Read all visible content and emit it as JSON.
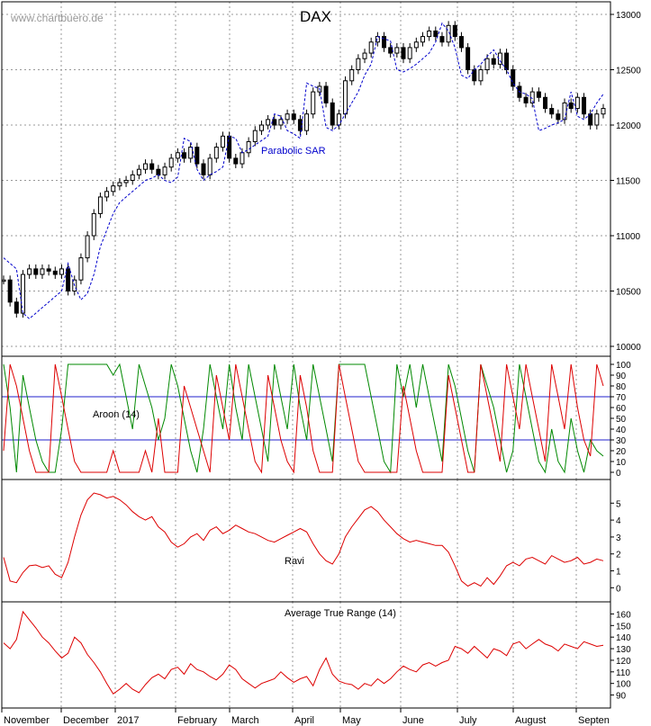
{
  "watermark": "www.chartbuero.de",
  "chart_data": {
    "type": "line",
    "title": "DAX",
    "months": [
      "November",
      "December",
      "2017",
      "February",
      "March",
      "April",
      "May",
      "June",
      "July",
      "August",
      "Septen"
    ],
    "panels": [
      {
        "name": "price",
        "type": "candlestick",
        "ylim": [
          10000,
          13000
        ],
        "yticks": [
          10000,
          10500,
          11000,
          11500,
          12000,
          12500,
          13000
        ],
        "grid": true,
        "annotation": "Parabolic SAR",
        "close": [
          10600,
          10400,
          10300,
          10650,
          10700,
          10650,
          10700,
          10680,
          10650,
          10700,
          10500,
          10600,
          10800,
          11000,
          11200,
          11350,
          11400,
          11450,
          11480,
          11500,
          11550,
          11600,
          11650,
          11600,
          11550,
          11620,
          11700,
          11750,
          11700,
          11800,
          11650,
          11550,
          11700,
          11800,
          11900,
          11700,
          11650,
          11750,
          11850,
          11950,
          12000,
          12050,
          12000,
          12050,
          12100,
          12050,
          11950,
          12100,
          12300,
          12350,
          12200,
          12000,
          12100,
          12400,
          12500,
          12600,
          12650,
          12750,
          12800,
          12700,
          12650,
          12700,
          12600,
          12700,
          12750,
          12800,
          12850,
          12800,
          12750,
          12900,
          12800,
          12700,
          12500,
          12400,
          12500,
          12600,
          12550,
          12650,
          12500,
          12350,
          12250,
          12200,
          12300,
          12250,
          12150,
          12100,
          12050,
          12200,
          12150,
          12250,
          12100,
          12000,
          12100,
          12150
        ],
        "sar": [
          10800,
          10750,
          10700,
          10300,
          10250,
          10300,
          10350,
          10400,
          10450,
          10500,
          10750,
          10550,
          10420,
          10480,
          10650,
          10900,
          11050,
          11200,
          11300,
          11350,
          11400,
          11450,
          11500,
          11520,
          11550,
          11500,
          11480,
          11530,
          11880,
          11850,
          11600,
          11500,
          11550,
          11580,
          11620,
          11900,
          11880,
          11750,
          11780,
          11820,
          11860,
          11900,
          12100,
          12080,
          11950,
          11920,
          11880,
          12380,
          12350,
          12330,
          11980,
          11950,
          12000,
          12100,
          12200,
          12300,
          12450,
          12550,
          12800,
          12780,
          12760,
          12500,
          12480,
          12510,
          12550,
          12600,
          12650,
          12750,
          12920,
          12850,
          12700,
          12450,
          12420,
          12500,
          12550,
          12620,
          12680,
          12580,
          12500,
          12380,
          12300,
          12280,
          12240,
          11950,
          11970,
          12000,
          12020,
          12050,
          12300,
          12080,
          12050,
          12100,
          12200,
          12280
        ],
        "series_colors": {
          "price": "#000000",
          "sar": "#0000cc"
        }
      },
      {
        "name": "aroon",
        "label": "Aroon (14)",
        "ylim": [
          0,
          100
        ],
        "yticks": [
          0,
          10,
          20,
          30,
          40,
          50,
          60,
          70,
          80,
          90,
          100
        ],
        "hlines": [
          30,
          70
        ],
        "up": [
          100,
          60,
          0,
          90,
          60,
          30,
          10,
          0,
          0,
          40,
          100,
          100,
          100,
          100,
          100,
          100,
          100,
          90,
          100,
          70,
          40,
          100,
          80,
          60,
          30,
          50,
          100,
          80,
          50,
          20,
          0,
          40,
          100,
          70,
          40,
          100,
          60,
          30,
          100,
          70,
          40,
          10,
          100,
          70,
          40,
          100,
          60,
          30,
          100,
          70,
          40,
          10,
          100,
          100,
          100,
          100,
          100,
          70,
          40,
          10,
          0,
          100,
          70,
          100,
          60,
          100,
          70,
          40,
          10,
          100,
          80,
          50,
          20,
          0,
          100,
          80,
          60,
          30,
          0,
          20,
          100,
          70,
          40,
          10,
          0,
          40,
          10,
          0,
          50,
          20,
          0,
          30,
          20,
          15
        ],
        "down": [
          20,
          100,
          80,
          50,
          20,
          0,
          0,
          0,
          100,
          70,
          40,
          10,
          0,
          0,
          0,
          0,
          0,
          20,
          0,
          0,
          0,
          0,
          20,
          0,
          50,
          0,
          0,
          0,
          80,
          60,
          40,
          20,
          0,
          90,
          60,
          30,
          100,
          70,
          40,
          10,
          0,
          90,
          60,
          30,
          10,
          0,
          90,
          60,
          20,
          0,
          0,
          0,
          100,
          70,
          40,
          10,
          0,
          0,
          0,
          0,
          0,
          0,
          80,
          50,
          20,
          0,
          0,
          0,
          0,
          90,
          60,
          30,
          0,
          0,
          100,
          70,
          40,
          10,
          100,
          70,
          40,
          100,
          70,
          40,
          10,
          100,
          70,
          40,
          100,
          60,
          30,
          15,
          100,
          80
        ],
        "series_colors": {
          "up": "#008800",
          "down": "#dd0000"
        }
      },
      {
        "name": "ravi",
        "label": "Ravi",
        "ylim": [
          -0.3,
          5.6
        ],
        "yticks": [
          0,
          1,
          2,
          3,
          4,
          5
        ],
        "values": [
          1.8,
          0.4,
          0.3,
          0.9,
          1.3,
          1.35,
          1.2,
          1.3,
          0.8,
          0.6,
          1.5,
          3.0,
          4.3,
          5.2,
          5.6,
          5.5,
          5.3,
          5.4,
          5.2,
          4.9,
          4.5,
          4.2,
          4.0,
          4.2,
          3.6,
          3.3,
          2.7,
          2.4,
          2.6,
          3.0,
          3.2,
          2.8,
          3.4,
          3.6,
          3.2,
          3.4,
          3.7,
          3.5,
          3.3,
          3.2,
          3.0,
          2.8,
          2.7,
          2.9,
          3.1,
          3.3,
          3.5,
          3.3,
          2.6,
          2.0,
          1.6,
          1.4,
          2.0,
          3.0,
          3.6,
          4.1,
          4.6,
          4.8,
          4.5,
          4.0,
          3.6,
          3.2,
          2.9,
          2.7,
          2.8,
          2.7,
          2.6,
          2.5,
          2.5,
          2.1,
          1.3,
          0.4,
          0.1,
          0.3,
          0.1,
          0.6,
          0.2,
          0.7,
          1.3,
          1.5,
          1.3,
          1.7,
          1.8,
          1.6,
          1.4,
          1.9,
          1.7,
          1.5,
          1.6,
          1.8,
          1.4,
          1.5,
          1.7,
          1.6
        ],
        "series_colors": {
          "ravi": "#dd0000"
        }
      },
      {
        "name": "atr",
        "label": "Average True Range (14)",
        "ylim": [
          85,
          165
        ],
        "yticks": [
          90,
          100,
          110,
          120,
          130,
          140,
          150,
          160
        ],
        "values": [
          135,
          130,
          138,
          162,
          155,
          148,
          140,
          135,
          128,
          122,
          126,
          140,
          135,
          125,
          118,
          110,
          100,
          91,
          95,
          100,
          95,
          92,
          99,
          105,
          108,
          104,
          112,
          114,
          108,
          117,
          112,
          110,
          106,
          103,
          108,
          116,
          112,
          104,
          100,
          96,
          100,
          102,
          104,
          110,
          105,
          101,
          104,
          106,
          98,
          112,
          122,
          108,
          102,
          100,
          99,
          95,
          100,
          98,
          104,
          100,
          104,
          110,
          115,
          112,
          110,
          116,
          118,
          115,
          118,
          120,
          132,
          130,
          126,
          132,
          127,
          122,
          130,
          128,
          124,
          134,
          136,
          130,
          134,
          138,
          134,
          132,
          128,
          134,
          132,
          130,
          136,
          134,
          132,
          133
        ],
        "series_colors": {
          "atr": "#dd0000"
        }
      }
    ],
    "colors": {
      "hline": "#2222cc",
      "grid": "#999999",
      "frame": "#000000"
    }
  }
}
